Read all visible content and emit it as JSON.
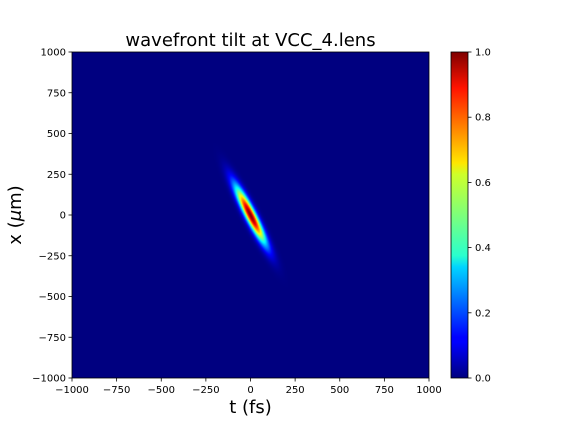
{
  "chart_data": {
    "type": "heatmap",
    "title": "wavefront tilt at VCC_4.lens",
    "xlabel": "t (fs)",
    "ylabel_prefix": "x (",
    "ylabel_symbol": "μ",
    "ylabel_suffix": "m)",
    "xlim": [
      -1000,
      1000
    ],
    "ylim": [
      -1000,
      1000
    ],
    "xticks": [
      -1000,
      -750,
      -500,
      -250,
      0,
      250,
      500,
      750,
      1000
    ],
    "yticks": [
      -1000,
      -750,
      -500,
      -250,
      0,
      250,
      500,
      750,
      1000
    ],
    "xtick_labels": [
      "−1000",
      "−750",
      "−500",
      "−250",
      "0",
      "250",
      "500",
      "750",
      "1000"
    ],
    "ytick_labels": [
      "−1000",
      "−750",
      "−500",
      "−250",
      "0",
      "250",
      "500",
      "750",
      "1000"
    ],
    "colormap": "jet",
    "clim": [
      0,
      1
    ],
    "colorbar_ticks": [
      0,
      0.2,
      0.4,
      0.6,
      0.8,
      1
    ],
    "colorbar_tick_labels": [
      "0.0",
      "0.2",
      "0.4",
      "0.6",
      "0.8",
      "1.0"
    ],
    "intensity": {
      "peak": 1.0,
      "center_t_fs": 0,
      "center_x_um": 0,
      "tilt_fs_per_um": -0.45,
      "pulse_sigma_t_fs": 32,
      "beam_sigma_x_um": 170
    }
  }
}
